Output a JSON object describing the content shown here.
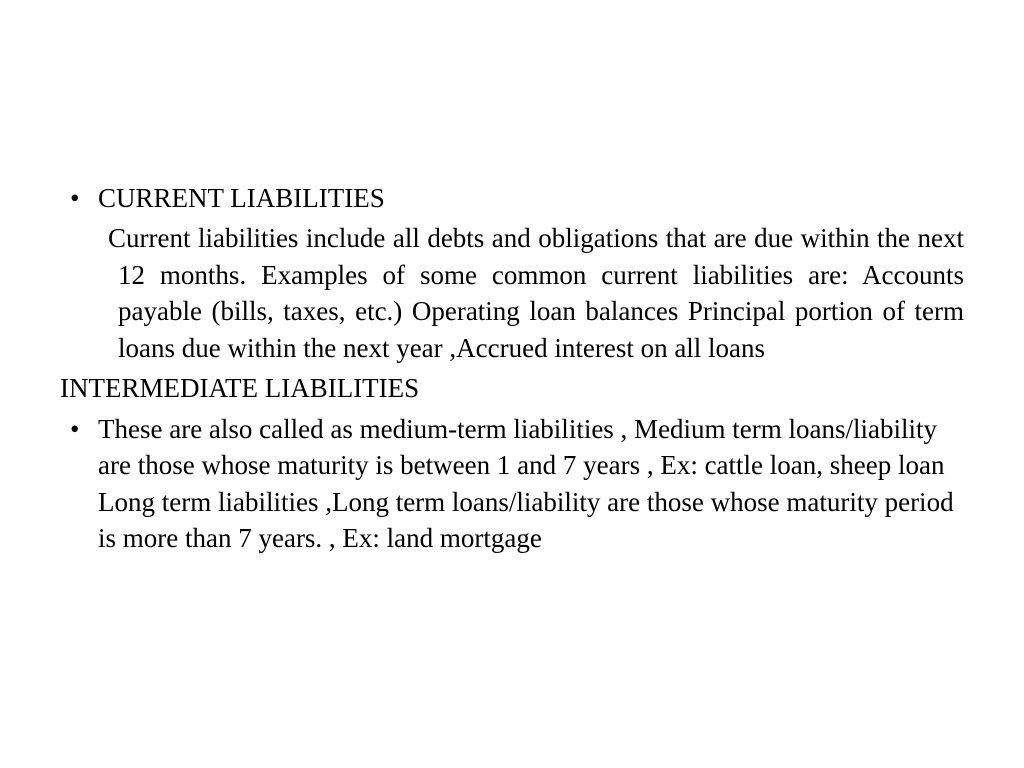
{
  "slide": {
    "item1_title": "CURRENT LIABILITIES",
    "item1_body": "Current liabilities include all debts and obligations that are due within the next 12 months.  Examples of some common current liabilities are: Accounts payable (bills, taxes, etc.) Operating loan balances Principal portion of term loans due within the next year ,Accrued interest on all loans",
    "heading2": "INTERMEDIATE LIABILITIES",
    "item2_body": "These are also called as medium-term liabilities , Medium term loans/liability are those whose maturity is between 1 and 7 years , Ex: cattle loan, sheep loan Long term liabilities ,Long term loans/liability are those whose maturity period is more than 7 years. , Ex: land mortgage"
  }
}
